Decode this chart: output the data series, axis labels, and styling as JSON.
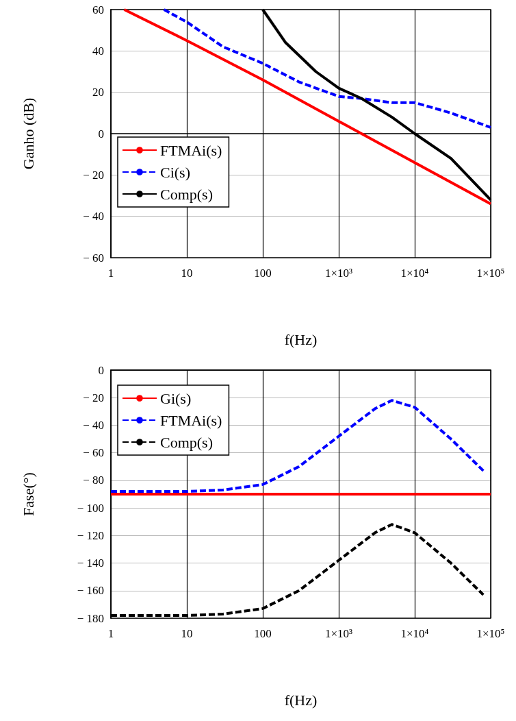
{
  "chart_data": [
    {
      "type": "line",
      "xlabel": "f(Hz)",
      "ylabel": "Ganho (dB)",
      "log": "x",
      "grid": true,
      "legend": "bottom left",
      "marker": "none",
      "xlim": [
        1,
        100000
      ],
      "xticks": [
        1,
        10,
        100,
        {
          "value": 1000,
          "label": "1×10³"
        },
        {
          "value": 10000,
          "label": "1×10⁴"
        },
        {
          "value": 100000,
          "label": "1×10⁵"
        }
      ],
      "ylim": [
        -60,
        60
      ],
      "yticks": [
        {
          "value": -60,
          "label": "− 60"
        },
        {
          "value": -40,
          "label": "− 40"
        },
        {
          "value": -20,
          "label": "− 20"
        },
        0,
        20,
        40,
        60
      ],
      "series": [
        {
          "name": "FTMAi(s)",
          "color": "#ff0000",
          "line_style": "solid",
          "x": [
            1.5,
            10,
            100,
            1000,
            10000,
            100000
          ],
          "values": [
            60,
            45,
            26,
            6,
            -14,
            -34
          ]
        },
        {
          "name": "Ci(s)",
          "color": "#0000ff",
          "line_style": "dashed",
          "x": [
            5,
            10,
            30,
            100,
            300,
            1000,
            2000,
            5000,
            10000,
            30000,
            100000
          ],
          "values": [
            60,
            54,
            42,
            34,
            25,
            18,
            17,
            15,
            15,
            10,
            3
          ]
        },
        {
          "name": "Comp(s)",
          "color": "#000000",
          "line_style": "solid",
          "x": [
            100,
            200,
            500,
            1000,
            2000,
            5000,
            10000,
            30000,
            100000
          ],
          "values": [
            60,
            44,
            30,
            22,
            17,
            8,
            0,
            -12,
            -32
          ]
        }
      ]
    },
    {
      "type": "line",
      "xlabel": "f(Hz)",
      "ylabel": "Fase(°)",
      "log": "x",
      "grid": true,
      "legend": "top left",
      "marker": "none",
      "xlim": [
        1,
        100000
      ],
      "xticks": [
        1,
        10,
        100,
        {
          "value": 1000,
          "label": "1×10³"
        },
        {
          "value": 10000,
          "label": "1×10⁴"
        },
        {
          "value": 100000,
          "label": "1×10⁵"
        }
      ],
      "ylim": [
        -180,
        0
      ],
      "yticks": [
        {
          "value": -180,
          "label": "− 180"
        },
        {
          "value": -160,
          "label": "− 160"
        },
        {
          "value": -140,
          "label": "− 140"
        },
        {
          "value": -120,
          "label": "− 120"
        },
        {
          "value": -100,
          "label": "− 100"
        },
        {
          "value": -80,
          "label": "− 80"
        },
        {
          "value": -60,
          "label": "− 60"
        },
        {
          "value": -40,
          "label": "− 40"
        },
        {
          "value": -20,
          "label": "− 20"
        },
        0
      ],
      "series": [
        {
          "name": "Gi(s)",
          "color": "#ff0000",
          "line_style": "solid",
          "x": [
            1,
            100000
          ],
          "values": [
            -90,
            -90
          ]
        },
        {
          "name": "FTMAi(s)",
          "color": "#0000ff",
          "line_style": "dashed",
          "x": [
            1,
            10,
            30,
            100,
            300,
            1000,
            3000,
            5000,
            10000,
            30000,
            80000
          ],
          "values": [
            -88,
            -88,
            -87,
            -83,
            -70,
            -48,
            -28,
            -22,
            -27,
            -50,
            -73
          ]
        },
        {
          "name": "Comp(s)",
          "color": "#000000",
          "line_style": "dashed",
          "x": [
            1,
            10,
            30,
            100,
            300,
            1000,
            3000,
            5000,
            10000,
            30000,
            80000
          ],
          "values": [
            -178,
            -178,
            -177,
            -173,
            -160,
            -138,
            -118,
            -112,
            -118,
            -140,
            -163
          ]
        }
      ]
    }
  ]
}
